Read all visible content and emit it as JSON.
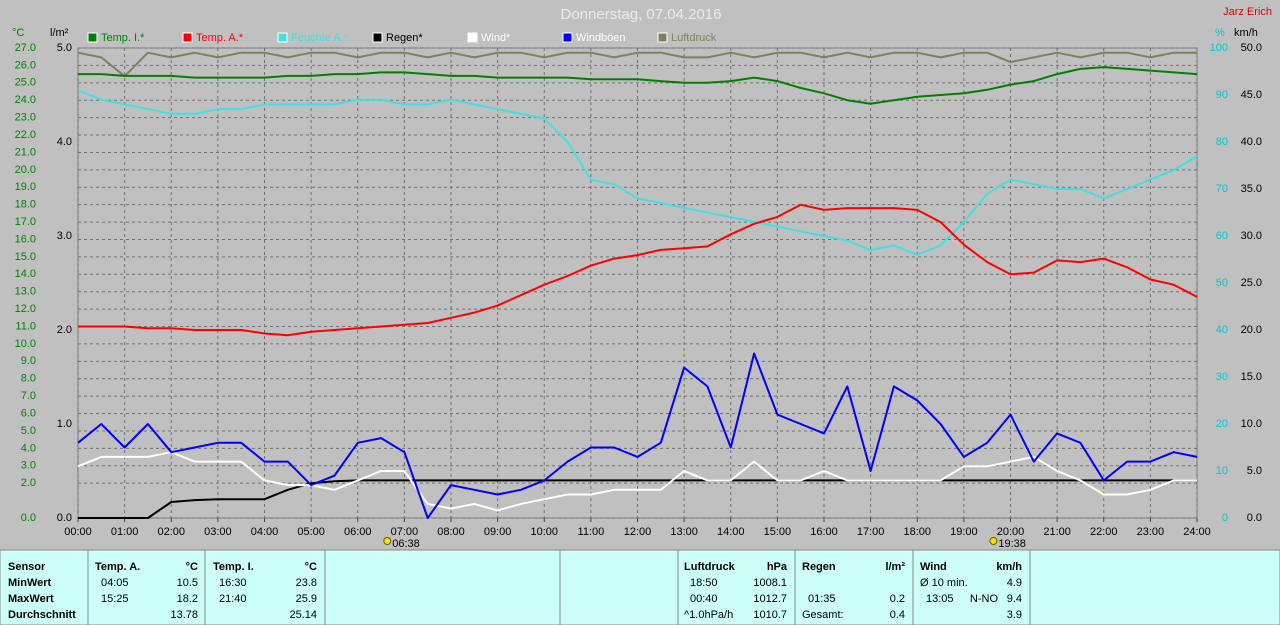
{
  "chart_data": {
    "type": "line",
    "title": "Donnerstag, 07.04.2016",
    "author": "Jarz Erich",
    "grid": true,
    "xlim": [
      0,
      24
    ],
    "xticks": [
      {
        "value": 0,
        "label": "00:00"
      },
      {
        "value": 1,
        "label": "01:00"
      },
      {
        "value": 2,
        "label": "02:00"
      },
      {
        "value": 3,
        "label": "03:00"
      },
      {
        "value": 4,
        "label": "04:00"
      },
      {
        "value": 5,
        "label": "05:00"
      },
      {
        "value": 6,
        "label": "06:00"
      },
      {
        "value": 7,
        "label": "07:00"
      },
      {
        "value": 8,
        "label": "08:00"
      },
      {
        "value": 9,
        "label": "09:00"
      },
      {
        "value": 10,
        "label": "10:00"
      },
      {
        "value": 11,
        "label": "11:00"
      },
      {
        "value": 12,
        "label": "12:00"
      },
      {
        "value": 13,
        "label": "13:00"
      },
      {
        "value": 14,
        "label": "14:00"
      },
      {
        "value": 15,
        "label": "15:00"
      },
      {
        "value": 16,
        "label": "16:00"
      },
      {
        "value": 17,
        "label": "17:00"
      },
      {
        "value": 18,
        "label": "18:00"
      },
      {
        "value": 19,
        "label": "19:00"
      },
      {
        "value": 20,
        "label": "20:00"
      },
      {
        "value": 21,
        "label": "21:00"
      },
      {
        "value": 22,
        "label": "22:00"
      },
      {
        "value": 23,
        "label": "23:00"
      },
      {
        "value": 24,
        "label": "24:00"
      }
    ],
    "axes": [
      {
        "label": "°C",
        "color": "#008000",
        "lim": [
          0,
          27
        ],
        "ticks": [
          {
            "value": 0,
            "label": "0.0"
          },
          {
            "value": 2,
            "label": "2.0"
          },
          {
            "value": 3,
            "label": "3.0"
          },
          {
            "value": 4,
            "label": "4.0"
          },
          {
            "value": 5,
            "label": "5.0"
          },
          {
            "value": 6,
            "label": "6.0"
          },
          {
            "value": 7,
            "label": "7.0"
          },
          {
            "value": 8,
            "label": "8.0"
          },
          {
            "value": 9,
            "label": "9.0"
          },
          {
            "value": 10,
            "label": "10.0"
          },
          {
            "value": 11,
            "label": "11.0"
          },
          {
            "value": 12,
            "label": "12.0"
          },
          {
            "value": 13,
            "label": "13.0"
          },
          {
            "value": 14,
            "label": "14.0"
          },
          {
            "value": 15,
            "label": "15.0"
          },
          {
            "value": 16,
            "label": "16.0"
          },
          {
            "value": 17,
            "label": "17.0"
          },
          {
            "value": 18,
            "label": "18.0"
          },
          {
            "value": 19,
            "label": "19.0"
          },
          {
            "value": 20,
            "label": "20.0"
          },
          {
            "value": 21,
            "label": "21.0"
          },
          {
            "value": 22,
            "label": "22.0"
          },
          {
            "value": 23,
            "label": "23.0"
          },
          {
            "value": 24,
            "label": "24.0"
          },
          {
            "value": 25,
            "label": "25.0"
          },
          {
            "value": 26,
            "label": "26.0"
          },
          {
            "value": 27,
            "label": "27.0"
          }
        ]
      },
      {
        "label": "l/m²",
        "color": "#000000",
        "lim": [
          0,
          5
        ],
        "ticks": [
          {
            "value": 0,
            "label": "0.0"
          },
          {
            "value": 1,
            "label": "1.0"
          },
          {
            "value": 2,
            "label": "2.0"
          },
          {
            "value": 3,
            "label": "3.0"
          },
          {
            "value": 4,
            "label": "4.0"
          },
          {
            "value": 5,
            "label": "5.0"
          }
        ]
      },
      {
        "label": "%",
        "color": "#00c8c8",
        "lim": [
          0,
          100
        ],
        "ticks": [
          0,
          10,
          20,
          30,
          40,
          50,
          60,
          70,
          80,
          90,
          100
        ]
      },
      {
        "label": "km/h",
        "color": "#000000",
        "lim": [
          0,
          50
        ],
        "ticks": [
          {
            "value": 0,
            "label": "0.0"
          },
          {
            "value": 5,
            "label": "5.0"
          },
          {
            "value": 10,
            "label": "10.0"
          },
          {
            "value": 15,
            "label": "15.0"
          },
          {
            "value": 20,
            "label": "20.0"
          },
          {
            "value": 25,
            "label": "25.0"
          },
          {
            "value": 30,
            "label": "30.0"
          },
          {
            "value": 35,
            "label": "35.0"
          },
          {
            "value": 40,
            "label": "40.0"
          },
          {
            "value": 45,
            "label": "45.0"
          },
          {
            "value": 50,
            "label": "50.0"
          }
        ]
      }
    ],
    "x": [
      0,
      0.5,
      1,
      1.5,
      2,
      2.5,
      3,
      3.5,
      4,
      4.5,
      5,
      5.5,
      6,
      6.5,
      7,
      7.5,
      8,
      8.5,
      9,
      9.5,
      10,
      10.5,
      11,
      11.5,
      12,
      12.5,
      13,
      13.5,
      14,
      14.5,
      15,
      15.5,
      16,
      16.5,
      17,
      17.5,
      18,
      18.5,
      19,
      19.5,
      20,
      20.5,
      21,
      21.5,
      22,
      22.5,
      23,
      23.5,
      24
    ],
    "series": [
      {
        "name": "Temp. I.*",
        "color": "#008000",
        "axis": 0,
        "values": [
          25.5,
          25.5,
          25.4,
          25.4,
          25.4,
          25.3,
          25.3,
          25.3,
          25.3,
          25.4,
          25.4,
          25.5,
          25.5,
          25.6,
          25.6,
          25.5,
          25.4,
          25.4,
          25.3,
          25.3,
          25.3,
          25.3,
          25.2,
          25.2,
          25.2,
          25.1,
          25.0,
          25.0,
          25.1,
          25.3,
          25.1,
          24.7,
          24.4,
          24.0,
          23.8,
          24.0,
          24.2,
          24.3,
          24.4,
          24.6,
          24.9,
          25.1,
          25.5,
          25.8,
          25.9,
          25.8,
          25.7,
          25.6,
          25.5
        ]
      },
      {
        "name": "Temp. A.*",
        "color": "#ff0000",
        "axis": 0,
        "values": [
          11.0,
          11.0,
          11.0,
          10.9,
          10.9,
          10.8,
          10.8,
          10.8,
          10.6,
          10.5,
          10.7,
          10.8,
          10.9,
          11.0,
          11.1,
          11.2,
          11.5,
          11.8,
          12.2,
          12.8,
          13.4,
          13.9,
          14.5,
          14.9,
          15.1,
          15.4,
          15.5,
          15.6,
          16.3,
          16.9,
          17.3,
          18.0,
          17.7,
          17.8,
          17.8,
          17.8,
          17.7,
          17.0,
          15.7,
          14.7,
          14.0,
          14.1,
          14.8,
          14.7,
          14.9,
          14.4,
          13.7,
          13.4,
          12.7
        ]
      },
      {
        "name": "Feuchte A.*",
        "color": "#40e0e0",
        "axis": 2,
        "values": [
          91,
          89,
          88,
          87,
          86,
          86,
          87,
          87,
          88,
          88,
          88,
          88,
          89,
          89,
          88,
          88,
          89,
          88,
          87,
          86,
          85,
          80,
          72,
          71,
          68,
          67,
          66,
          65,
          64,
          63,
          62,
          61,
          60,
          59,
          57,
          58,
          56,
          58,
          63,
          69,
          72,
          71,
          70,
          70,
          68,
          70,
          72,
          74,
          77
        ]
      },
      {
        "name": "Regen*",
        "color": "#000000",
        "axis": 1,
        "values": [
          0,
          0,
          0,
          0,
          0.17,
          0.19,
          0.2,
          0.2,
          0.2,
          0.3,
          0.37,
          0.39,
          0.4,
          0.4,
          0.4,
          0.4,
          0.4,
          0.4,
          0.4,
          0.4,
          0.4,
          0.4,
          0.4,
          0.4,
          0.4,
          0.4,
          0.4,
          0.4,
          0.4,
          0.4,
          0.4,
          0.4,
          0.4,
          0.4,
          0.4,
          0.4,
          0.4,
          0.4,
          0.4,
          0.4,
          0.4,
          0.4,
          0.4,
          0.4,
          0.4,
          0.4,
          0.4,
          0.4,
          0.4
        ]
      },
      {
        "name": "Wind*",
        "color": "#ffffff",
        "axis": 3,
        "values": [
          5.5,
          6.5,
          6.5,
          6.5,
          7,
          6,
          6,
          6,
          4,
          3.5,
          3.5,
          3,
          4,
          5,
          5,
          1.5,
          1,
          1.5,
          0.8,
          1.5,
          2,
          2.5,
          2.5,
          3,
          3,
          3,
          5,
          4,
          4,
          6,
          4,
          4,
          5,
          4,
          4,
          4,
          4,
          4,
          5.5,
          5.5,
          6,
          6.5,
          5,
          4,
          2.5,
          2.5,
          3,
          4,
          4
        ]
      },
      {
        "name": "Windböen",
        "color": "#0000ff",
        "axis": 3,
        "values": [
          8,
          10,
          7.5,
          10,
          7,
          7.5,
          8,
          8,
          6,
          6,
          3.5,
          4.5,
          8,
          8.5,
          7,
          0,
          3.5,
          3,
          2.5,
          3,
          4,
          6,
          7.5,
          7.5,
          6.5,
          8,
          16,
          14,
          7.5,
          17.5,
          11,
          10,
          9,
          14,
          5,
          14,
          12.5,
          10,
          6.5,
          8,
          11,
          6,
          9,
          8,
          4,
          6,
          6,
          7,
          6.5
        ]
      },
      {
        "name": "Luftdruck",
        "color": "#808060",
        "axis": 2,
        "values": [
          99,
          98,
          94,
          99,
          98,
          99,
          98,
          99,
          99,
          98,
          99,
          99,
          98,
          99,
          99,
          98,
          99,
          98,
          99,
          99,
          98,
          99,
          99,
          98,
          99,
          99,
          98,
          98,
          99,
          98,
          99,
          99,
          98,
          99,
          98,
          99,
          99,
          98,
          99,
          99,
          97,
          98,
          99,
          98,
          99,
          99,
          98,
          99,
          99
        ]
      }
    ],
    "annotations": [
      {
        "x": 6.6333,
        "label": "06:38"
      },
      {
        "x": 19.6333,
        "label": "19:38"
      }
    ]
  },
  "stats": {
    "sensor": {
      "header": "Sensor",
      "rows": [
        "MinWert",
        "MaxWert",
        "Durchschnitt"
      ]
    },
    "blocks": [
      {
        "header": "Temp. A.",
        "unit": "°C",
        "rows": [
          {
            "time": "04:05",
            "value": 10.5
          },
          {
            "time": "15:25",
            "value": 18.2
          },
          {
            "value": 13.78
          }
        ]
      },
      {
        "header": "Temp. I.",
        "unit": "°C",
        "rows": [
          {
            "time": "16:30",
            "value": 23.8
          },
          {
            "time": "21:40",
            "value": 25.9
          },
          {
            "value": 25.14
          }
        ]
      },
      {
        "header": "Luftdruck",
        "unit": "hPa",
        "rows": [
          {
            "time": "18:50",
            "value": 1008.1
          },
          {
            "time": "00:40",
            "value": 1012.7
          },
          {
            "time": "^1.0hPa/h",
            "value": 1010.7
          }
        ]
      },
      {
        "header": "Regen",
        "unit": "l/m²",
        "rows": [
          null,
          {
            "time": "01:35",
            "value": 0.2
          },
          {
            "time": "Gesamt:",
            "value": 0.4
          }
        ]
      },
      {
        "header": "Wind",
        "unit": "km/h",
        "rows": [
          {
            "time": "Ø 10 min.",
            "value": 4.9
          },
          {
            "time": "13:05",
            "dir": "N-NO",
            "value": 9.4
          },
          {
            "value": 3.9
          }
        ]
      }
    ]
  }
}
